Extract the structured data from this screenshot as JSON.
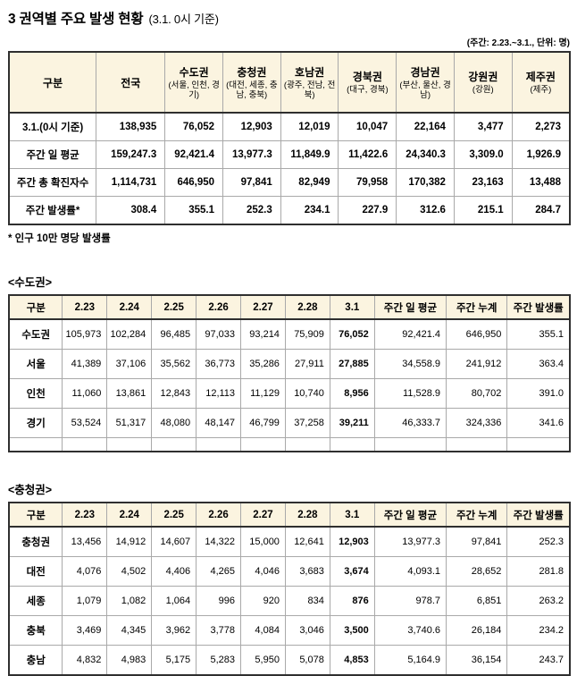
{
  "page": {
    "title": "3 권역별 주요 발생 현황",
    "title_suffix": "(3.1. 0시 기준)",
    "unit_note": "(주간: 2.23.~3.1., 단위: 명)",
    "footnote": "* 인구 10만 명당 발생률"
  },
  "colors": {
    "table_header_bg": "#FBF4E0",
    "border_dark": "#2F2F2F",
    "border_light": "#A9A9A9",
    "text": "#000000",
    "background": "#FFFFFF"
  },
  "summary_table": {
    "col_header_label": "구분",
    "columns": [
      {
        "name": "전국",
        "sub": ""
      },
      {
        "name": "수도권",
        "sub": "(서울, 인천, 경기)"
      },
      {
        "name": "충청권",
        "sub": "(대전, 세종, 충남, 충북)"
      },
      {
        "name": "호남권",
        "sub": "(광주, 전남, 전북)"
      },
      {
        "name": "경북권",
        "sub": "(대구, 경북)"
      },
      {
        "name": "경남권",
        "sub": "(부산, 울산, 경남)"
      },
      {
        "name": "강원권",
        "sub": "(강원)"
      },
      {
        "name": "제주권",
        "sub": "(제주)"
      }
    ],
    "rows": [
      {
        "label": "3.1.(0시 기준)",
        "values": [
          "138,935",
          "76,052",
          "12,903",
          "12,019",
          "10,047",
          "22,164",
          "3,477",
          "2,273"
        ]
      },
      {
        "label": "주간 일 평균",
        "values": [
          "159,247.3",
          "92,421.4",
          "13,977.3",
          "11,849.9",
          "11,422.6",
          "24,340.3",
          "3,309.0",
          "1,926.9"
        ]
      },
      {
        "label": "주간 총 확진자수",
        "values": [
          "1,114,731",
          "646,950",
          "97,841",
          "82,949",
          "79,958",
          "170,382",
          "23,163",
          "13,488"
        ]
      },
      {
        "label": "주간 발생률*",
        "values": [
          "308.4",
          "355.1",
          "252.3",
          "234.1",
          "227.9",
          "312.6",
          "215.1",
          "284.7"
        ]
      }
    ]
  },
  "regional_tables": [
    {
      "section_title": "<수도권>",
      "headers": [
        "구분",
        "2.23",
        "2.24",
        "2.25",
        "2.26",
        "2.27",
        "2.28",
        "3.1",
        "주간 일 평균",
        "주간 누계",
        "주간 발생률"
      ],
      "emphasized_header": "3.1",
      "trailing_empty_row": true,
      "rows": [
        {
          "label": "수도권",
          "values": [
            "105,973",
            "102,284",
            "96,485",
            "97,033",
            "93,214",
            "75,909",
            "76,052",
            "92,421.4",
            "646,950",
            "355.1"
          ]
        },
        {
          "label": "서울",
          "values": [
            "41,389",
            "37,106",
            "35,562",
            "36,773",
            "35,286",
            "27,911",
            "27,885",
            "34,558.9",
            "241,912",
            "363.4"
          ]
        },
        {
          "label": "인천",
          "values": [
            "11,060",
            "13,861",
            "12,843",
            "12,113",
            "11,129",
            "10,740",
            "8,956",
            "11,528.9",
            "80,702",
            "391.0"
          ]
        },
        {
          "label": "경기",
          "values": [
            "53,524",
            "51,317",
            "48,080",
            "48,147",
            "46,799",
            "37,258",
            "39,211",
            "46,333.7",
            "324,336",
            "341.6"
          ]
        }
      ]
    },
    {
      "section_title": "<충청권>",
      "headers": [
        "구분",
        "2.23",
        "2.24",
        "2.25",
        "2.26",
        "2.27",
        "2.28",
        "3.1",
        "주간 일 평균",
        "주간 누계",
        "주간 발생률"
      ],
      "emphasized_header": "3.1",
      "trailing_empty_row": false,
      "rows": [
        {
          "label": "충청권",
          "values": [
            "13,456",
            "14,912",
            "14,607",
            "14,322",
            "15,000",
            "12,641",
            "12,903",
            "13,977.3",
            "97,841",
            "252.3"
          ]
        },
        {
          "label": "대전",
          "values": [
            "4,076",
            "4,502",
            "4,406",
            "4,265",
            "4,046",
            "3,683",
            "3,674",
            "4,093.1",
            "28,652",
            "281.8"
          ]
        },
        {
          "label": "세종",
          "values": [
            "1,079",
            "1,082",
            "1,064",
            "996",
            "920",
            "834",
            "876",
            "978.7",
            "6,851",
            "263.2"
          ]
        },
        {
          "label": "충북",
          "values": [
            "3,469",
            "4,345",
            "3,962",
            "3,778",
            "4,084",
            "3,046",
            "3,500",
            "3,740.6",
            "26,184",
            "234.2"
          ]
        },
        {
          "label": "충남",
          "values": [
            "4,832",
            "4,983",
            "5,175",
            "5,283",
            "5,950",
            "5,078",
            "4,853",
            "5,164.9",
            "36,154",
            "243.7"
          ]
        }
      ]
    }
  ]
}
